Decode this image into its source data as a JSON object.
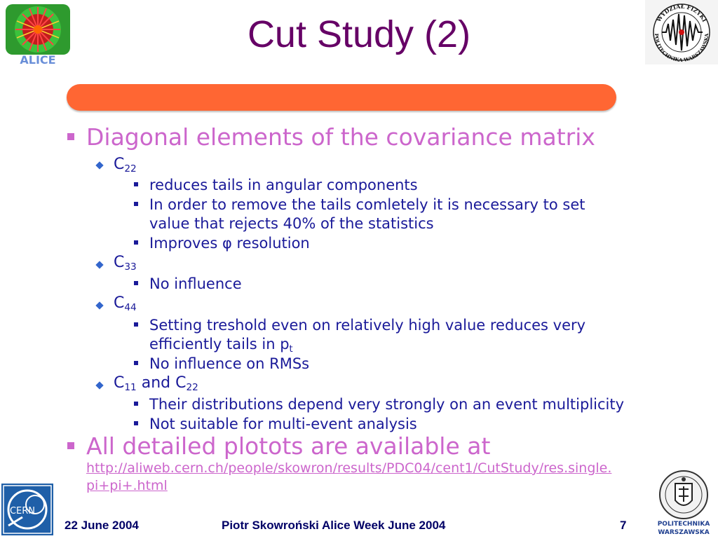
{
  "title": "Cut Study (2)",
  "bullets": {
    "diag": "Diagonal elements of the covariance matrix",
    "c22_base": "C",
    "c22_sub": "22",
    "c22_items": [
      "reduces tails in angular components",
      "In order to remove the tails comletely it is necessary to set",
      "value that rejects 40% of the statistics",
      "Improves φ resolution"
    ],
    "c33_base": "C",
    "c33_sub": "33",
    "c33_items": [
      "No influence"
    ],
    "c44_base": "C",
    "c44_sub": "44",
    "c44_items": [
      "Setting treshold even on relatively high value reduces very",
      "efficiently tails in p",
      "t",
      "No influence on RMSs"
    ],
    "c11_base": "C",
    "c11_sub": "11",
    "c11_and": " and C",
    "c11_sub2": "22",
    "c11_items": [
      "Their distributions depend very strongly on an event multiplicity",
      "Not suitable for multi-event analysis"
    ],
    "plots": "All detailed plotots are available at",
    "link_line1": "http://aliweb.cern.ch/people/skowron/results/PDC04/cent1/CutStudy/res.single.",
    "link_line2": "pi+pi+.html"
  },
  "footer": {
    "date": "22 June 2004",
    "author": "Piotr Skowroński  Alice Week June  2004",
    "page": "7"
  },
  "logos": {
    "alice": "ALICE",
    "physics": "WYDZIAŁ FIZYKI POLITECHNIKA WARSZAWSKA",
    "cern": "CERN",
    "pw": "POLITECHNIKA WARSZAWSKA"
  },
  "colors": {
    "title": "#660066",
    "band": "#ff6633",
    "level1": "#cc66cc",
    "level2": "#1a1a99"
  }
}
